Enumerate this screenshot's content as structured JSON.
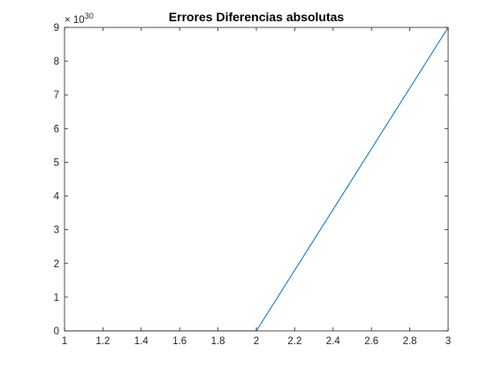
{
  "chart_data": {
    "type": "line",
    "title": "Errores Diferencias absolutas",
    "xlabel": "",
    "ylabel": "",
    "xlim": [
      1,
      3
    ],
    "ylim": [
      0,
      9
    ],
    "y_exponent_label": "× 10",
    "y_exponent_power": "30",
    "x_ticks": [
      1,
      1.2,
      1.4,
      1.6,
      1.8,
      2,
      2.2,
      2.4,
      2.6,
      2.8,
      3
    ],
    "x_tick_labels": [
      "1",
      "1.2",
      "1.4",
      "1.6",
      "1.8",
      "2",
      "2.2",
      "2.4",
      "2.6",
      "2.8",
      "3"
    ],
    "y_ticks": [
      0,
      1,
      2,
      3,
      4,
      5,
      6,
      7,
      8,
      9
    ],
    "y_tick_labels": [
      "0",
      "1",
      "2",
      "3",
      "4",
      "5",
      "6",
      "7",
      "8",
      "9"
    ],
    "grid": false,
    "series": [
      {
        "x": [
          1,
          2,
          3
        ],
        "y": [
          0,
          0,
          9
        ],
        "color": "#0072BD"
      }
    ]
  }
}
